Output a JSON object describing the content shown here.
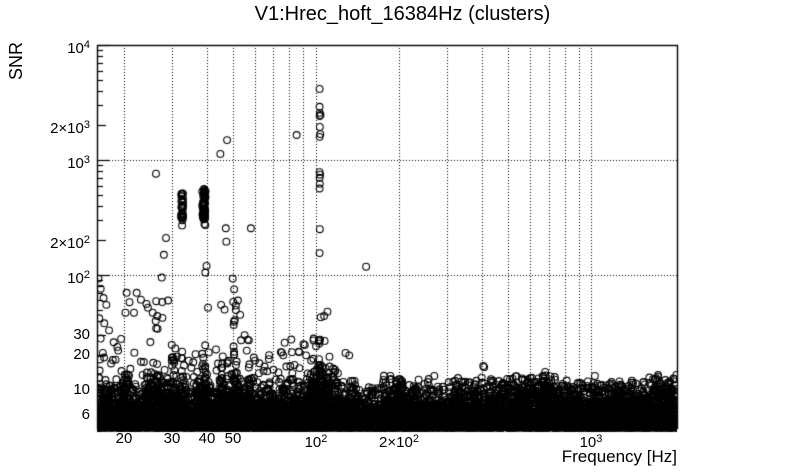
{
  "chart_data": {
    "type": "scatter",
    "title": "V1:Hrec_hoft_16384Hz (clusters)",
    "xlabel": "Frequency [Hz]",
    "ylabel": "SNR",
    "xscale": "log",
    "yscale": "log",
    "xlim": [
      16,
      2048
    ],
    "ylim": [
      4.67,
      10000
    ],
    "grid": {
      "style": "dotted",
      "color": "#000000",
      "x_values": [
        20,
        30,
        40,
        50,
        60,
        70,
        80,
        90,
        100,
        200,
        300,
        400,
        500,
        600,
        700,
        800,
        900,
        1000
      ],
      "y_values": [
        10,
        100,
        1000
      ]
    },
    "x_ticks": [
      {
        "v": 20,
        "mant": "20"
      },
      {
        "v": 30,
        "mant": "30"
      },
      {
        "v": 40,
        "mant": "40"
      },
      {
        "v": 50,
        "mant": "50"
      },
      {
        "v": 100,
        "mant": "10",
        "exp": "2"
      },
      {
        "v": 200,
        "mant": "2×10",
        "exp": "2"
      },
      {
        "v": 1000,
        "mant": "10",
        "exp": "3"
      }
    ],
    "y_ticks": [
      {
        "v": 10000,
        "mant": "10",
        "exp": "4"
      },
      {
        "v": 2000,
        "mant": "2×10",
        "exp": "3"
      },
      {
        "v": 1000,
        "mant": "10",
        "exp": "3"
      },
      {
        "v": 200,
        "mant": "2×10",
        "exp": "2"
      },
      {
        "v": 100,
        "mant": "10",
        "exp": "2"
      },
      {
        "v": 30,
        "mant": "30"
      },
      {
        "v": 20,
        "mant": "20"
      },
      {
        "v": 10,
        "mant": "10"
      },
      {
        "v": 6,
        "mant": "6"
      }
    ],
    "marker": {
      "shape": "open-circle",
      "color": "#000000",
      "radius_px": 3.4,
      "stroke_px": 1.1
    },
    "outlier_points": [
      [
        26.2,
        760
      ],
      [
        28.5,
        210
      ],
      [
        28.0,
        150
      ],
      [
        27.5,
        95
      ],
      [
        29.0,
        60
      ],
      [
        44.9,
        1130
      ],
      [
        47.5,
        1490
      ],
      [
        85,
        1650
      ],
      [
        103,
        4150
      ],
      [
        103,
        2900
      ],
      [
        103.2,
        2570
      ],
      [
        103.8,
        2460
      ],
      [
        103,
        2410
      ],
      [
        103.2,
        1940
      ],
      [
        103.6,
        1680
      ],
      [
        103,
        1590
      ],
      [
        103,
        785
      ],
      [
        103.4,
        745
      ],
      [
        103,
        700
      ],
      [
        103.2,
        620
      ],
      [
        103,
        565
      ],
      [
        103.2,
        250
      ],
      [
        103,
        155
      ],
      [
        110,
        48
      ],
      [
        107,
        44
      ],
      [
        104,
        43
      ],
      [
        152,
        118
      ],
      [
        32.6,
        270
      ],
      [
        39.3,
        277
      ],
      [
        40,
        120
      ],
      [
        39.6,
        105
      ],
      [
        47,
        255
      ],
      [
        58,
        255
      ],
      [
        47.2,
        195
      ],
      [
        49.8,
        93
      ],
      [
        50.4,
        75
      ],
      [
        57,
        15.7
      ],
      [
        65,
        16
      ],
      [
        70,
        15
      ],
      [
        73,
        14.2
      ],
      [
        87,
        15.5
      ],
      [
        96,
        18
      ],
      [
        128,
        21
      ],
      [
        132,
        20
      ],
      [
        120,
        14
      ],
      [
        138,
        12
      ],
      [
        405,
        16.2
      ],
      [
        408,
        15.8
      ],
      [
        230,
        10.4
      ],
      [
        205,
        11.5
      ],
      [
        610,
        10
      ],
      [
        613,
        10.2
      ],
      [
        644,
        10.7
      ],
      [
        30.8,
        23
      ],
      [
        31.2,
        19.5
      ],
      [
        30.5,
        18
      ],
      [
        45.2,
        55
      ],
      [
        46.5,
        50
      ],
      [
        40.5,
        52
      ],
      [
        24.5,
        52
      ],
      [
        25.5,
        47
      ],
      [
        26.5,
        44
      ],
      [
        22.3,
        70
      ],
      [
        23.1,
        61
      ],
      [
        24.2,
        56
      ],
      [
        21.8,
        47
      ],
      [
        16.2,
        93
      ],
      [
        16.5,
        76
      ],
      [
        16.9,
        63
      ],
      [
        17.3,
        55
      ],
      [
        16.3,
        42
      ],
      [
        17.0,
        38
      ],
      [
        17.7,
        33
      ],
      [
        16.5,
        28
      ],
      [
        18.4,
        26
      ],
      [
        19.1,
        22
      ],
      [
        16.8,
        21
      ],
      [
        18.0,
        17
      ],
      [
        20.5,
        70
      ],
      [
        21.0,
        58
      ],
      [
        20.3,
        47
      ],
      [
        34.5,
        18
      ],
      [
        36,
        13
      ],
      [
        52,
        60
      ],
      [
        53,
        45
      ],
      [
        55,
        30
      ],
      [
        56,
        22
      ],
      [
        60,
        18
      ],
      [
        62,
        14
      ],
      [
        76,
        20
      ],
      [
        78,
        16
      ],
      [
        82,
        14
      ],
      [
        90,
        25
      ],
      [
        92,
        20
      ],
      [
        98,
        28
      ],
      [
        100,
        24
      ],
      [
        112,
        16
      ],
      [
        115,
        13
      ],
      [
        160,
        9.5
      ],
      [
        170,
        10.2
      ],
      [
        180,
        11
      ],
      [
        190,
        10
      ],
      [
        260,
        9.8
      ],
      [
        280,
        10.1
      ],
      [
        320,
        9.6
      ],
      [
        350,
        10.3
      ],
      [
        370,
        9.8
      ],
      [
        440,
        10.5
      ],
      [
        460,
        10.1
      ],
      [
        480,
        9.9
      ],
      [
        500,
        10.2
      ],
      [
        520,
        9.8
      ],
      [
        540,
        10
      ],
      [
        560,
        10.5
      ],
      [
        580,
        9.7
      ],
      [
        700,
        10.8
      ],
      [
        720,
        10.2
      ],
      [
        760,
        9.8
      ],
      [
        800,
        10
      ],
      [
        900,
        9.9
      ],
      [
        1000,
        10.1
      ],
      [
        1100,
        9.8
      ],
      [
        1250,
        10
      ],
      [
        1400,
        10.3
      ],
      [
        1500,
        9.9
      ],
      [
        1700,
        10.5
      ],
      [
        1800,
        10.1
      ],
      [
        1950,
        10.4
      ],
      [
        2000,
        9.8
      ]
    ],
    "clusters": [
      {
        "f": 20.2,
        "df": 0.3,
        "snr_min": 6,
        "snr_max": 13,
        "n": 14
      },
      {
        "f": 18.4,
        "df": 0.3,
        "snr_min": 6,
        "snr_max": 11,
        "n": 8
      },
      {
        "f": 26.6,
        "df": 0.35,
        "snr_min": 6,
        "snr_max": 17,
        "n": 16
      },
      {
        "f": 26.9,
        "df": 0.8,
        "snr_min": 33,
        "snr_max": 62,
        "n": 6
      },
      {
        "f": 30.2,
        "df": 0.5,
        "snr_min": 6,
        "snr_max": 25,
        "n": 13
      },
      {
        "f": 32.6,
        "df": 0.28,
        "snr_min": 292,
        "snr_max": 515,
        "n": 26
      },
      {
        "f": 32.6,
        "df": 0.3,
        "snr_min": 6,
        "snr_max": 30,
        "n": 10
      },
      {
        "f": 39.1,
        "df": 0.55,
        "snr_min": 270,
        "snr_max": 565,
        "n": 56
      },
      {
        "f": 39.2,
        "df": 0.7,
        "snr_min": 6,
        "snr_max": 26,
        "n": 18
      },
      {
        "f": 45.6,
        "df": 0.5,
        "snr_min": 6,
        "snr_max": 20,
        "n": 10
      },
      {
        "f": 50.6,
        "df": 0.6,
        "snr_min": 6,
        "snr_max": 60,
        "n": 16
      },
      {
        "f": 57.6,
        "df": 0.6,
        "snr_min": 6,
        "snr_max": 17,
        "n": 8
      },
      {
        "f": 103,
        "df": 1.0,
        "snr_min": 6,
        "snr_max": 32,
        "n": 24
      },
      {
        "f": 110,
        "df": 1.2,
        "snr_min": 7,
        "snr_max": 16,
        "n": 6
      },
      {
        "f": 206,
        "df": 5,
        "snr_min": 7.5,
        "snr_max": 11.5,
        "n": 8
      },
      {
        "f": 676,
        "df": 5,
        "snr_min": 8.5,
        "snr_max": 14.5,
        "n": 8
      },
      {
        "f": 550,
        "df": 7,
        "snr_min": 8,
        "snr_max": 10.5,
        "n": 5
      },
      {
        "f": 1900,
        "df": 90,
        "snr_min": 8,
        "snr_max": 10.5,
        "n": 6
      }
    ],
    "band_profile": [
      [
        16,
        18,
        8.3
      ],
      [
        18,
        19.6,
        7.3
      ],
      [
        19.6,
        21,
        8.8
      ],
      [
        21,
        24,
        7.2
      ],
      [
        24,
        28,
        9.3
      ],
      [
        28,
        31,
        8.4
      ],
      [
        31,
        34,
        8.8
      ],
      [
        34,
        36.5,
        6.6
      ],
      [
        36.5,
        41,
        9.4
      ],
      [
        41,
        44,
        7.2
      ],
      [
        44,
        48,
        8.8
      ],
      [
        48,
        52,
        9.2
      ],
      [
        52,
        60,
        8.4
      ],
      [
        60,
        75,
        7.6
      ],
      [
        75,
        95,
        8.0
      ],
      [
        95,
        118,
        10.3
      ],
      [
        118,
        140,
        7.8
      ],
      [
        140,
        175,
        6.9
      ],
      [
        175,
        215,
        8.1
      ],
      [
        215,
        300,
        7.3
      ],
      [
        300,
        430,
        7.8
      ],
      [
        430,
        520,
        8.1
      ],
      [
        520,
        740,
        8.7
      ],
      [
        740,
        1100,
        7.7
      ],
      [
        1100,
        1600,
        8.0
      ],
      [
        1600,
        2048,
        8.8
      ]
    ],
    "band": {
      "count": 8500,
      "snr_floor": 4.72
    },
    "sparse_layer": {
      "count": 1400,
      "factor": 1.55
    },
    "mid_scatter": [
      {
        "f_min": 16,
        "f_max": 115,
        "snr_min": 10,
        "snr_max": 28,
        "count": 90
      },
      {
        "f_min": 115,
        "f_max": 2048,
        "snr_min": 8.8,
        "snr_max": 13.5,
        "count": 55
      }
    ],
    "seed": 42
  }
}
